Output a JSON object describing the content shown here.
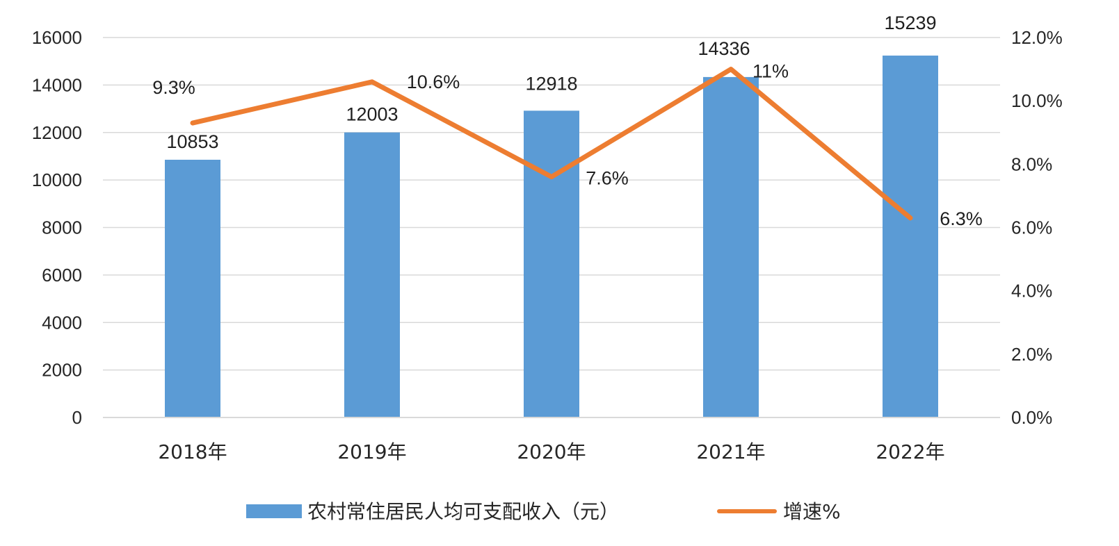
{
  "chart_data": {
    "type": "bar",
    "categories": [
      "2018年",
      "2019年",
      "2020年",
      "2021年",
      "2022年"
    ],
    "series": [
      {
        "name": "农村常住居民人均可支配收入（元）",
        "chart_type": "bar",
        "axis": "left",
        "color": "#5b9bd5",
        "values": [
          10853,
          12003,
          12918,
          14336,
          15239
        ],
        "labels": [
          "10853",
          "12003",
          "12918",
          "14336",
          "15239"
        ]
      },
      {
        "name": "增速%",
        "chart_type": "line",
        "axis": "right",
        "color": "#ed7d31",
        "values": [
          9.3,
          10.6,
          7.6,
          11,
          6.3
        ],
        "labels": [
          "9.3%",
          "10.6%",
          "7.6%",
          "11%",
          "6.3%"
        ]
      }
    ],
    "title": "",
    "xlabel": "",
    "ylabel": "",
    "y_left": {
      "range": [
        0,
        16000
      ],
      "ticks": [
        "0",
        "2000",
        "4000",
        "6000",
        "8000",
        "10000",
        "12000",
        "14000",
        "16000"
      ]
    },
    "y_right": {
      "range": [
        0,
        12
      ],
      "ticks": [
        "0.0%",
        "2.0%",
        "4.0%",
        "6.0%",
        "8.0%",
        "10.0%",
        "12.0%"
      ]
    },
    "grid": true,
    "legend_position": "bottom"
  }
}
